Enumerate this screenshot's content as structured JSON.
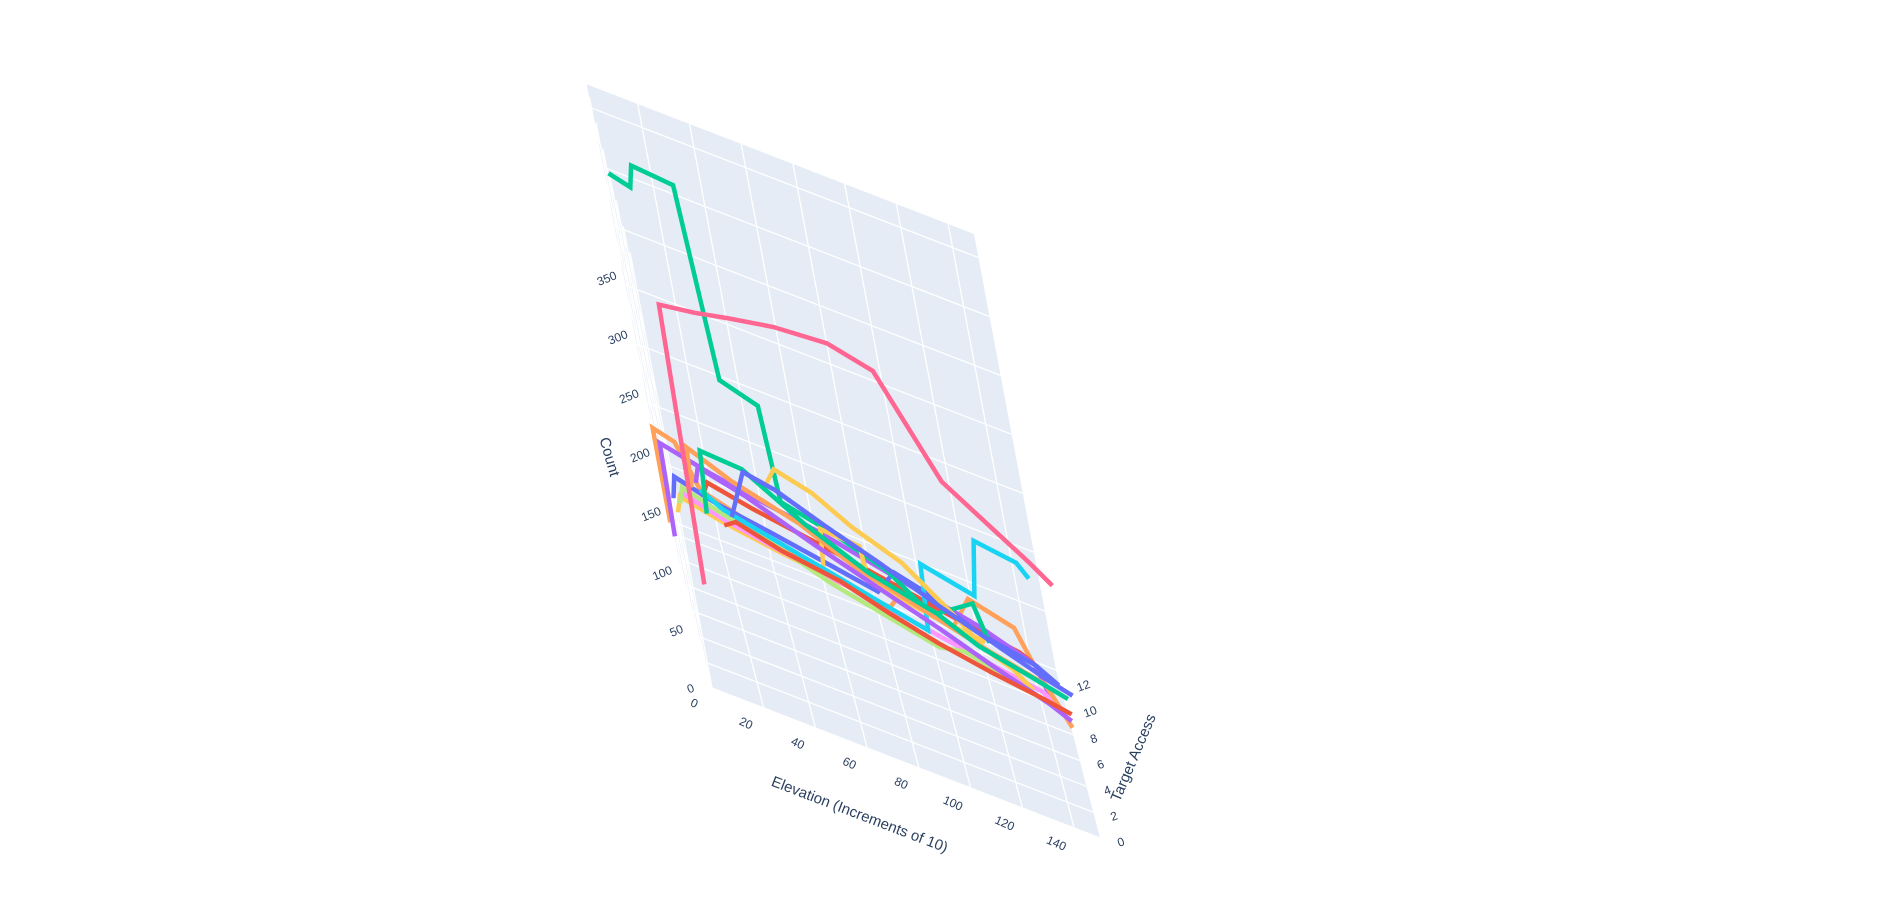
{
  "chart_data": {
    "type": "line",
    "subtype": "3d-step",
    "title": "",
    "xlabel": "Elevation (Increments of 10)",
    "ylabel": "Target Access",
    "zlabel": "Count",
    "xlim": [
      0,
      150
    ],
    "ylim": [
      0,
      13
    ],
    "zlim": [
      0,
      370
    ],
    "x_ticks": [
      "0",
      "20",
      "40",
      "60",
      "80",
      "100",
      "120",
      "140"
    ],
    "y_ticks": [
      "0",
      "2",
      "4",
      "6",
      "8",
      "10",
      "12"
    ],
    "z_ticks": [
      "0",
      "50",
      "100",
      "150",
      "200",
      "250",
      "300",
      "350"
    ],
    "grid": true,
    "background_color": "#E5ECF6",
    "grid_color": "#ffffff",
    "text_color": "#2a3f5f",
    "series": [
      {
        "color": "#EF553B",
        "points": [
          [
            18,
            0.3,
            150
          ],
          [
            23,
            0.3,
            157
          ],
          [
            40,
            0.3,
            147
          ],
          [
            62,
            0.3,
            140
          ],
          [
            80,
            0.3,
            128
          ],
          [
            98,
            0.3,
            118
          ],
          [
            118,
            0.3,
            110
          ],
          [
            138,
            0.3,
            104
          ],
          [
            148,
            0.3,
            100
          ]
        ]
      },
      {
        "color": "#636EFA",
        "points": [
          [
            22,
            0.8,
            155
          ],
          [
            30,
            0.8,
            200
          ],
          [
            42,
            0.8,
            195
          ],
          [
            60,
            0.8,
            180
          ],
          [
            80,
            0.8,
            165
          ],
          [
            100,
            0.8,
            148
          ],
          [
            120,
            0.8,
            133
          ],
          [
            140,
            0.8,
            118
          ],
          [
            150,
            0.8,
            112
          ]
        ]
      },
      {
        "color": "#00CC96",
        "points": [
          [
            12,
            1.2,
            145
          ],
          [
            14,
            1.2,
            200
          ],
          [
            30,
            1.2,
            198
          ],
          [
            52,
            1.2,
            170
          ],
          [
            75,
            1.2,
            148
          ],
          [
            100,
            1.2,
            135
          ],
          [
            115,
            1.2,
            120
          ],
          [
            135,
            1.2,
            110
          ],
          [
            148,
            1.2,
            103
          ]
        ]
      },
      {
        "color": "#AB63FA",
        "points": [
          [
            10,
            1.6,
            165
          ],
          [
            12,
            1.6,
            180
          ],
          [
            30,
            1.6,
            170
          ],
          [
            55,
            1.6,
            150
          ],
          [
            80,
            1.6,
            132
          ],
          [
            100,
            1.6,
            118
          ],
          [
            120,
            1.6,
            102
          ],
          [
            140,
            1.6,
            88
          ],
          [
            148,
            1.6,
            80
          ]
        ]
      },
      {
        "color": "#FFA15A",
        "points": [
          [
            8,
            2.0,
            155
          ],
          [
            9,
            2.0,
            190
          ],
          [
            25,
            2.0,
            175
          ],
          [
            50,
            2.0,
            160
          ],
          [
            70,
            2.0,
            140
          ],
          [
            95,
            2.0,
            125
          ],
          [
            120,
            2.0,
            110
          ],
          [
            140,
            2.0,
            100
          ],
          [
            148,
            2.0,
            70
          ]
        ]
      },
      {
        "color": "#FF6692",
        "points": [
          [
            5,
            0.2,
            90
          ],
          [
            8,
            0.2,
            330
          ],
          [
            22,
            0.2,
            335
          ],
          [
            36,
            0.2,
            342
          ],
          [
            54,
            0.2,
            350
          ],
          [
            75,
            0.2,
            354
          ],
          [
            92,
            0.2,
            345
          ],
          [
            112,
            0.2,
            268
          ],
          [
            128,
            0.2,
            245
          ],
          [
            142,
            0.2,
            225
          ],
          [
            150,
            0.2,
            212
          ]
        ]
      },
      {
        "color": "#FECB52",
        "points": [
          [
            40,
            3.0,
            175
          ],
          [
            44,
            3.0,
            190
          ],
          [
            58,
            3.0,
            182
          ],
          [
            72,
            3.0,
            165
          ],
          [
            90,
            3.0,
            150
          ],
          [
            108,
            3.0,
            120
          ],
          [
            118,
            3.0,
            100
          ],
          [
            128,
            3.0,
            92
          ],
          [
            135,
            3.0,
            80
          ]
        ]
      },
      {
        "color": "#19D3F3",
        "points": [
          [
            12,
            3.5,
            140
          ],
          [
            20,
            3.5,
            130
          ],
          [
            40,
            3.5,
            120
          ],
          [
            60,
            3.5,
            110
          ],
          [
            80,
            3.5,
            100
          ],
          [
            96,
            3.5,
            92
          ],
          [
            98,
            3.5,
            150
          ],
          [
            118,
            3.5,
            140
          ],
          [
            122,
            3.5,
            190
          ],
          [
            138,
            3.5,
            185
          ],
          [
            142,
            3.5,
            175
          ]
        ]
      },
      {
        "color": "#B6E880",
        "points": [
          [
            3,
            4.5,
            110
          ],
          [
            5,
            4.5,
            125
          ],
          [
            20,
            4.5,
            115
          ],
          [
            40,
            4.5,
            105
          ],
          [
            60,
            4.5,
            90
          ],
          [
            80,
            4.5,
            80
          ],
          [
            100,
            4.5,
            70
          ],
          [
            110,
            4.5,
            75
          ],
          [
            130,
            4.5,
            65
          ],
          [
            145,
            4.5,
            55
          ]
        ]
      },
      {
        "color": "#FF97FF",
        "points": [
          [
            4,
            5.5,
            110
          ],
          [
            20,
            5.5,
            100
          ],
          [
            40,
            5.5,
            92
          ],
          [
            60,
            5.5,
            85
          ],
          [
            80,
            5.5,
            78
          ],
          [
            100,
            5.5,
            70
          ],
          [
            120,
            5.5,
            62
          ],
          [
            140,
            5.5,
            55
          ],
          [
            148,
            5.5,
            40
          ]
        ]
      },
      {
        "color": "#FECB52",
        "points": [
          [
            2,
            6.0,
            85
          ],
          [
            4,
            6.0,
            100
          ],
          [
            20,
            6.0,
            92
          ],
          [
            40,
            6.0,
            85
          ],
          [
            58,
            6.0,
            80
          ],
          [
            60,
            6.0,
            120
          ],
          [
            75,
            6.0,
            118
          ],
          [
            76,
            6.0,
            90
          ],
          [
            100,
            6.0,
            80
          ],
          [
            120,
            6.0,
            75
          ]
        ]
      },
      {
        "color": "#00CC96",
        "points": [
          [
            0,
            7.0,
            360
          ],
          [
            8,
            7.0,
            355
          ],
          [
            10,
            7.0,
            375
          ],
          [
            26,
            7.0,
            372
          ],
          [
            30,
            7.0,
            210
          ],
          [
            44,
            7.0,
            200
          ],
          [
            46,
            7.0,
            120
          ],
          [
            65,
            7.0,
            110
          ],
          [
            85,
            7.0,
            95
          ],
          [
            100,
            7.0,
            70
          ],
          [
            118,
            7.0,
            95
          ],
          [
            122,
            7.0,
            65
          ]
        ]
      },
      {
        "color": "#636EFA",
        "points": [
          [
            2,
            8.0,
            75
          ],
          [
            4,
            8.0,
            95
          ],
          [
            20,
            8.0,
            85
          ],
          [
            40,
            8.0,
            78
          ],
          [
            60,
            8.0,
            70
          ],
          [
            80,
            8.0,
            62
          ],
          [
            88,
            8.0,
            85
          ],
          [
            100,
            8.0,
            78
          ],
          [
            118,
            8.0,
            60
          ],
          [
            140,
            8.0,
            50
          ],
          [
            148,
            8.0,
            40
          ]
        ]
      },
      {
        "color": "#AB63FA",
        "points": [
          [
            0,
            9.0,
            30
          ],
          [
            1,
            9.0,
            110
          ],
          [
            20,
            9.0,
            100
          ],
          [
            40,
            9.0,
            92
          ],
          [
            60,
            9.0,
            85
          ],
          [
            80,
            9.0,
            75
          ],
          [
            100,
            9.0,
            65
          ],
          [
            120,
            9.0,
            55
          ],
          [
            140,
            9.0,
            40
          ],
          [
            145,
            9.0,
            10
          ]
        ]
      },
      {
        "color": "#EF553B",
        "points": [
          [
            15,
            10.0,
            65
          ],
          [
            18,
            10.0,
            80
          ],
          [
            35,
            10.0,
            72
          ],
          [
            55,
            10.0,
            65
          ],
          [
            75,
            10.0,
            58
          ],
          [
            95,
            10.0,
            50
          ],
          [
            115,
            10.0,
            42
          ],
          [
            135,
            10.0,
            35
          ],
          [
            140,
            10.0,
            30
          ]
        ]
      },
      {
        "color": "#FFA15A",
        "points": [
          [
            0,
            11.0,
            20
          ],
          [
            0,
            11.0,
            100
          ],
          [
            8,
            11.0,
            95
          ],
          [
            15,
            11.0,
            60
          ],
          [
            30,
            11.0,
            50
          ],
          [
            45,
            11.0,
            35
          ],
          [
            65,
            11.0,
            25
          ],
          [
            85,
            11.0,
            20
          ],
          [
            90,
            11.0,
            35
          ],
          [
            110,
            11.0,
            25
          ],
          [
            118,
            11.0,
            55
          ],
          [
            135,
            11.0,
            45
          ],
          [
            140,
            11.0,
            20
          ]
        ]
      }
    ]
  }
}
